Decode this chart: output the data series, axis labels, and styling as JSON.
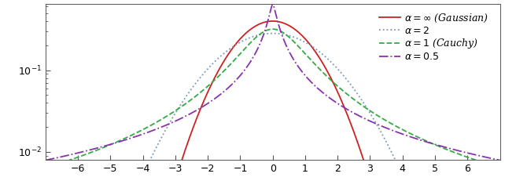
{
  "xlim": [
    -7,
    7
  ],
  "ylim_log": [
    0.008,
    0.65
  ],
  "xticks": [
    -6,
    -5,
    -4,
    -3,
    -2,
    -1,
    0,
    1,
    2,
    3,
    4,
    5,
    6
  ],
  "yticks": [
    0.01,
    0.1
  ],
  "series": [
    {
      "label": "$\\alpha = \\infty$ (Gaussian)",
      "color": "#cc2222",
      "linestyle": "solid",
      "linewidth": 1.3,
      "alpha_param": "inf"
    },
    {
      "label": "$\\alpha = 2$",
      "color": "#7799bb",
      "linestyle": "dotted",
      "linewidth": 1.3,
      "alpha_param": 2.0
    },
    {
      "label": "$\\alpha = 1$ (Cauchy)",
      "color": "#33aa44",
      "linestyle": "dashed",
      "linewidth": 1.3,
      "alpha_param": 1.0
    },
    {
      "label": "$\\alpha = 0.5$",
      "color": "#8833aa",
      "linestyle": "dashdot",
      "linewidth": 1.3,
      "alpha_param": 0.5
    }
  ],
  "figsize": [
    6.42,
    2.4
  ],
  "dpi": 100,
  "legend_fontsize": 9,
  "tick_fontsize": 9
}
